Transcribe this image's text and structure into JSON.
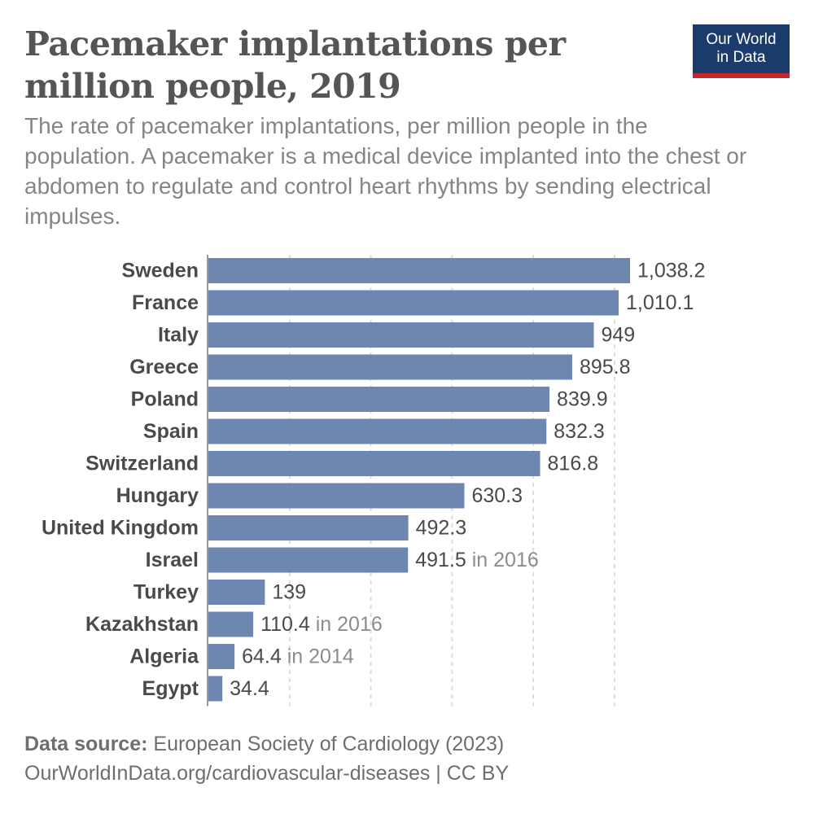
{
  "title": "Pacemaker implantations per million people, 2019",
  "subtitle": "The rate of pacemaker implantations, per million people in the population. A pacemaker is a medical device implanted into the chest or abdomen to regulate and control heart rhythms by sending electrical impulses.",
  "logo": {
    "line1": "Our World",
    "line2": "in Data",
    "background": "#1a3b6b",
    "accent": "#c8252c"
  },
  "footer": {
    "source_label": "Data source:",
    "source_text": "European Society of Cardiology (2023)",
    "url_line": "OurWorldInData.org/cardiovascular-diseases | CC BY"
  },
  "chart_data": {
    "type": "bar",
    "orientation": "horizontal",
    "bar_color": "#6d87b1",
    "grid": true,
    "categories": [
      "Sweden",
      "France",
      "Italy",
      "Greece",
      "Poland",
      "Spain",
      "Switzerland",
      "Hungary",
      "United Kingdom",
      "Israel",
      "Turkey",
      "Kazakhstan",
      "Algeria",
      "Egypt"
    ],
    "values": [
      1038.2,
      1010.1,
      949,
      895.8,
      839.9,
      832.3,
      816.8,
      630.3,
      492.3,
      491.5,
      139,
      110.4,
      64.4,
      34.4
    ],
    "value_labels": [
      "1,038.2",
      "1,010.1",
      "949",
      "895.8",
      "839.9",
      "832.3",
      "816.8",
      "630.3",
      "492.3",
      "491.5",
      "139",
      "110.4",
      "64.4",
      "34.4"
    ],
    "year_notes": [
      "",
      "",
      "",
      "",
      "",
      "",
      "",
      "",
      "",
      "in 2016",
      "",
      "in 2016",
      "in 2014",
      ""
    ],
    "xlim": [
      0,
      1038.2
    ],
    "gridlines": [
      0,
      200,
      400,
      600,
      800,
      1000
    ]
  }
}
